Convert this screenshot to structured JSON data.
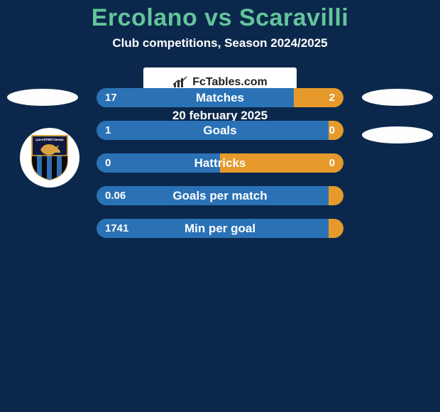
{
  "background_color": "#0b284c",
  "title": {
    "text": "Ercolano vs Scaravilli",
    "color": "#64c49b",
    "fontsize": 34
  },
  "subtitle": {
    "text": "Club competitions, Season 2024/2025",
    "color": "#ffffff",
    "fontsize": 17
  },
  "left_oval_color": "#fefefe",
  "right_oval_color": "#fefefe",
  "club_logo": {
    "ring_color": "#ffffff",
    "shield_upper_bg": "#101a40",
    "shield_lower_stripes": [
      "#0a0a0a",
      "#2e6fb5",
      "#0a0a0a",
      "#2e6fb5",
      "#0a0a0a",
      "#2e6fb5",
      "#0a0a0a"
    ],
    "shield_border": "#d9a441",
    "lion_color": "#d9a441",
    "text_color": "#ffffff",
    "text": "U.S. LATINA CALCIO"
  },
  "bars": {
    "left_color": "#2a72b5",
    "right_color": "#e59a2b",
    "height": 27,
    "gap": 19,
    "radius": 14,
    "label_color": "#ffffff",
    "value_color": "#ffffff",
    "rows": [
      {
        "label": "Matches",
        "left_value": "17",
        "right_value": "2",
        "left_pct": 80,
        "right_pct": 20
      },
      {
        "label": "Goals",
        "left_value": "1",
        "right_value": "0",
        "left_pct": 94,
        "right_pct": 6
      },
      {
        "label": "Hattricks",
        "left_value": "0",
        "right_value": "0",
        "left_pct": 50,
        "right_pct": 50
      },
      {
        "label": "Goals per match",
        "left_value": "0.06",
        "right_value": "",
        "left_pct": 94,
        "right_pct": 6
      },
      {
        "label": "Min per goal",
        "left_value": "1741",
        "right_value": "",
        "left_pct": 94,
        "right_pct": 6
      }
    ]
  },
  "attribution": {
    "text": "FcTables.com",
    "bg": "#ffffff",
    "text_color": "#222222",
    "icon_color": "#333333"
  },
  "date": {
    "text": "20 february 2025",
    "color": "#ffffff",
    "fontsize": 17
  }
}
